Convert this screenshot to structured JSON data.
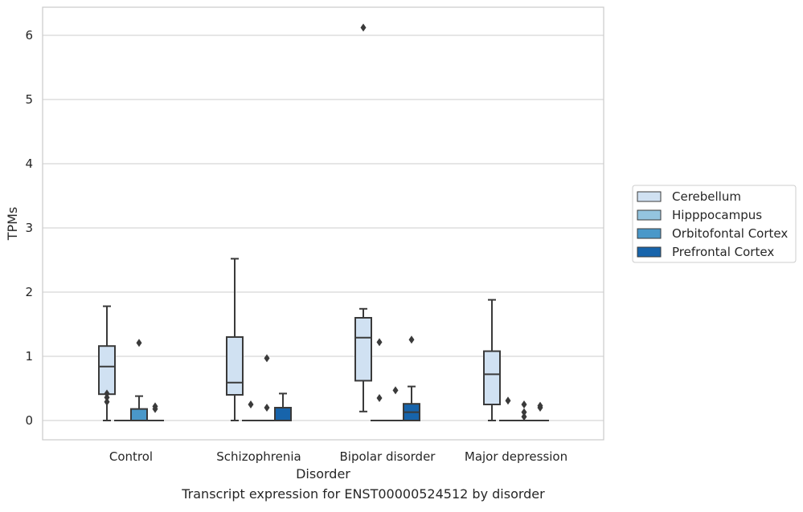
{
  "caption": "Transcript expression for ENST00000524512 by disorder",
  "chart_data": {
    "type": "box",
    "xlabel": "Disorder",
    "ylabel": "TPMs",
    "ylim": [
      -0.3,
      6.45
    ],
    "yticks": [
      0,
      1,
      2,
      3,
      4,
      5,
      6
    ],
    "grid": true,
    "legend_position": "right",
    "categories": [
      "Control",
      "Schizophrenia",
      "Bipolar disorder",
      "Major depression"
    ],
    "series": [
      {
        "name": "Cerebellum",
        "color": "#d0e1f2",
        "boxes": [
          {
            "whislo": 0.0,
            "q1": 0.41,
            "med": 0.84,
            "q3": 1.16,
            "whishi": 1.78,
            "fliers": [
              0.29,
              0.36,
              0.42
            ]
          },
          {
            "whislo": 0.0,
            "q1": 0.4,
            "med": 0.59,
            "q3": 1.3,
            "whishi": 2.52,
            "fliers": []
          },
          {
            "whislo": 0.14,
            "q1": 0.62,
            "med": 1.29,
            "q3": 1.6,
            "whishi": 1.74,
            "fliers": [
              6.12
            ]
          },
          {
            "whislo": 0.0,
            "q1": 0.25,
            "med": 0.72,
            "q3": 1.08,
            "whishi": 1.88,
            "fliers": []
          }
        ]
      },
      {
        "name": "Hipppocampus",
        "color": "#94c4df",
        "boxes": [
          {
            "whislo": 0.0,
            "q1": 0.0,
            "med": 0.0,
            "q3": 0.0,
            "whishi": 0.0,
            "fliers": []
          },
          {
            "whislo": 0.0,
            "q1": 0.0,
            "med": 0.0,
            "q3": 0.0,
            "whishi": 0.0,
            "fliers": [
              0.25
            ]
          },
          {
            "whislo": 0.0,
            "q1": 0.0,
            "med": 0.0,
            "q3": 0.0,
            "whishi": 0.0,
            "fliers": [
              0.35,
              1.22
            ]
          },
          {
            "whislo": 0.0,
            "q1": 0.0,
            "med": 0.0,
            "q3": 0.0,
            "whishi": 0.0,
            "fliers": [
              0.31
            ]
          }
        ]
      },
      {
        "name": "Orbitofontal Cortex",
        "color": "#4a98c9",
        "boxes": [
          {
            "whislo": 0.0,
            "q1": 0.0,
            "med": 0.0,
            "q3": 0.18,
            "whishi": 0.38,
            "fliers": [
              1.21
            ]
          },
          {
            "whislo": 0.0,
            "q1": 0.0,
            "med": 0.0,
            "q3": 0.0,
            "whishi": 0.0,
            "fliers": [
              0.2,
              0.97
            ]
          },
          {
            "whislo": 0.0,
            "q1": 0.0,
            "med": 0.0,
            "q3": 0.0,
            "whishi": 0.0,
            "fliers": [
              0.47
            ]
          },
          {
            "whislo": 0.0,
            "q1": 0.0,
            "med": 0.0,
            "q3": 0.0,
            "whishi": 0.0,
            "fliers": [
              0.06,
              0.13,
              0.25
            ]
          }
        ]
      },
      {
        "name": "Prefrontal Cortex",
        "color": "#1764ab",
        "boxes": [
          {
            "whislo": 0.0,
            "q1": 0.0,
            "med": 0.0,
            "q3": 0.0,
            "whishi": 0.0,
            "fliers": [
              0.18,
              0.22
            ]
          },
          {
            "whislo": 0.0,
            "q1": 0.0,
            "med": 0.0,
            "q3": 0.2,
            "whishi": 0.42,
            "fliers": []
          },
          {
            "whislo": 0.0,
            "q1": 0.0,
            "med": 0.13,
            "q3": 0.26,
            "whishi": 0.53,
            "fliers": [
              1.26
            ]
          },
          {
            "whislo": 0.0,
            "q1": 0.0,
            "med": 0.0,
            "q3": 0.0,
            "whishi": 0.0,
            "fliers": [
              0.2,
              0.23
            ]
          }
        ]
      }
    ]
  }
}
